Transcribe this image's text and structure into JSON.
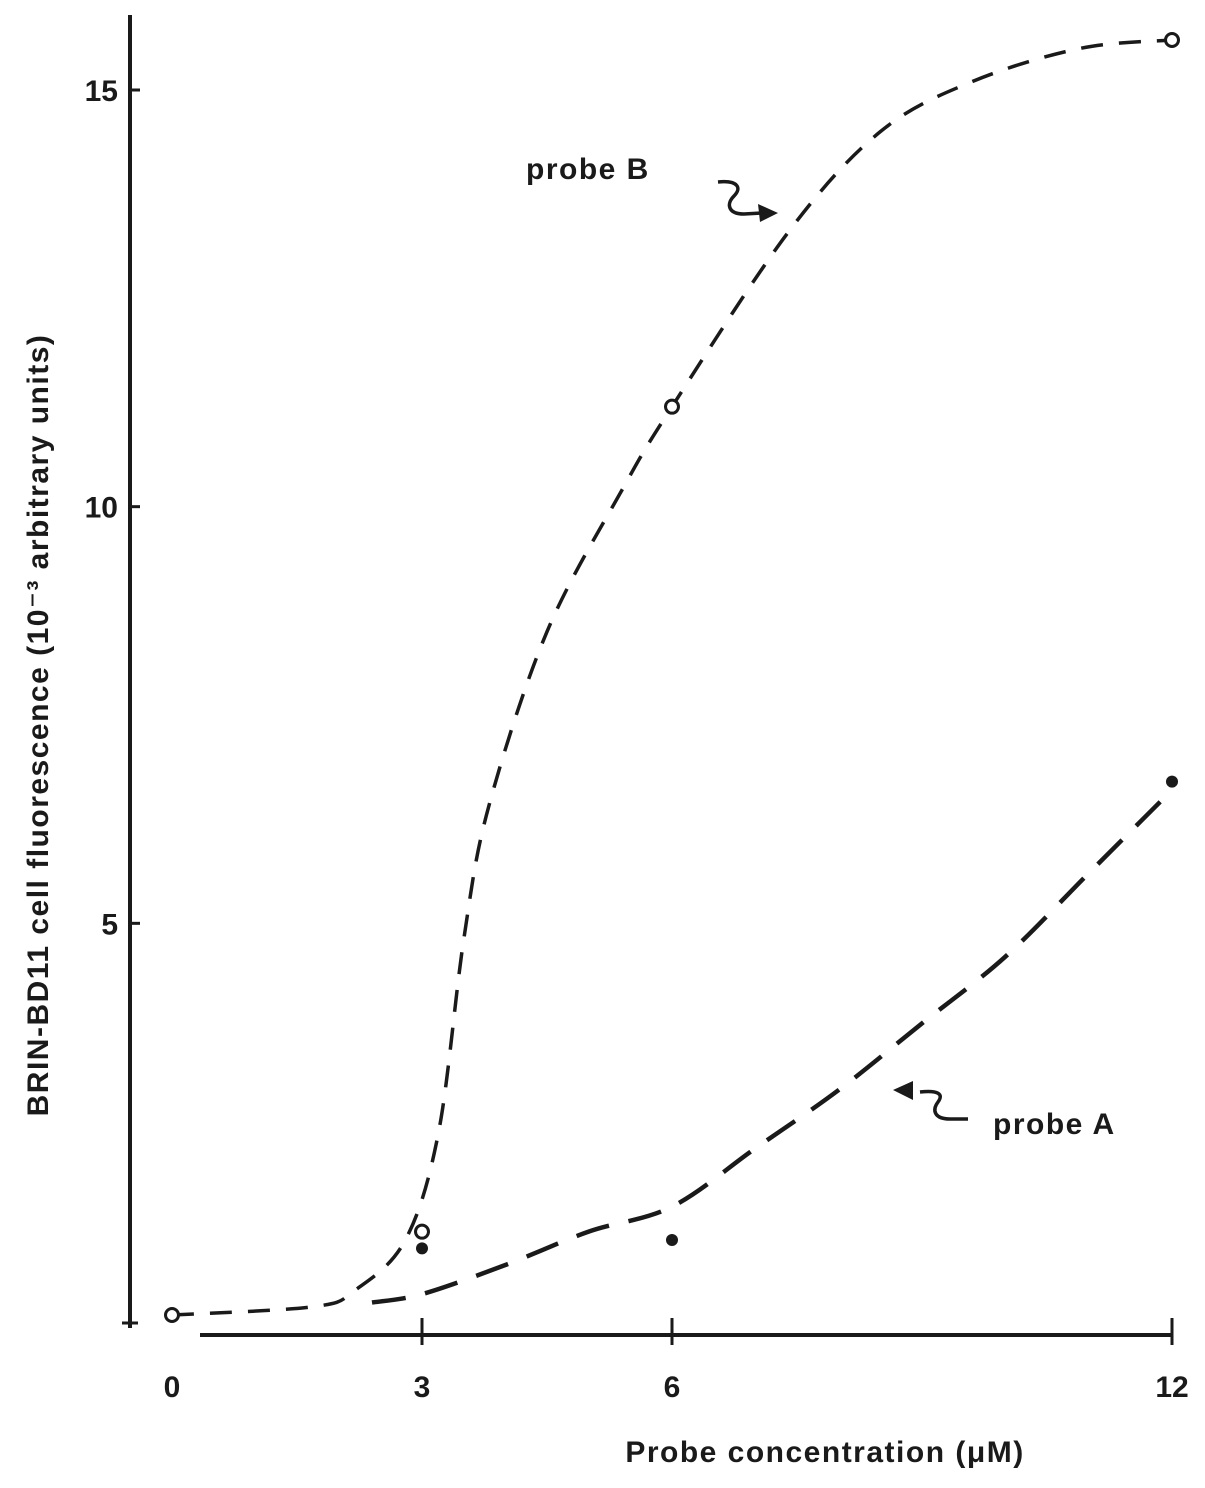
{
  "chart_data": {
    "type": "line",
    "title": "",
    "xlabel": "Probe concentration (μM)",
    "ylabel": "BRIN-BD11 cell fluorescence (10⁻³ arbitrary units)",
    "xlim": [
      0,
      12
    ],
    "ylim": [
      0,
      16
    ],
    "x_ticks": [
      0,
      3,
      6,
      12
    ],
    "x_tick_labels": [
      "0",
      "3",
      "6",
      "12"
    ],
    "y_ticks": [
      5,
      10,
      15
    ],
    "y_tick_labels": [
      "5",
      "10",
      "15"
    ],
    "grid": false,
    "series": [
      {
        "name": "probe B",
        "marker": "open-circle",
        "color": "#1a1a1a",
        "points": [
          {
            "x": 0,
            "y": 0.3
          },
          {
            "x": 3,
            "y": 1.3
          },
          {
            "x": 6,
            "y": 11.2
          },
          {
            "x": 12,
            "y": 15.6
          }
        ],
        "curve": [
          {
            "x": 0,
            "y": 0.3
          },
          {
            "x": 1.7,
            "y": 0.4
          },
          {
            "x": 2.2,
            "y": 0.6
          },
          {
            "x": 2.8,
            "y": 1.2
          },
          {
            "x": 3.2,
            "y": 2.5
          },
          {
            "x": 3.5,
            "y": 4.8
          },
          {
            "x": 3.8,
            "y": 6.4
          },
          {
            "x": 4.5,
            "y": 8.5
          },
          {
            "x": 5.4,
            "y": 10.2
          },
          {
            "x": 6.0,
            "y": 11.2
          },
          {
            "x": 7.4,
            "y": 13.3
          },
          {
            "x": 8.5,
            "y": 14.5
          },
          {
            "x": 9.6,
            "y": 15.1
          },
          {
            "x": 10.9,
            "y": 15.5
          },
          {
            "x": 12,
            "y": 15.6
          }
        ]
      },
      {
        "name": "probe A",
        "marker": "filled-circle",
        "color": "#1a1a1a",
        "points": [
          {
            "x": 3,
            "y": 1.1
          },
          {
            "x": 6,
            "y": 1.2
          },
          {
            "x": 12,
            "y": 6.7
          }
        ],
        "curve": [
          {
            "x": 2.4,
            "y": 0.45
          },
          {
            "x": 3.0,
            "y": 0.55
          },
          {
            "x": 4.0,
            "y": 0.9
          },
          {
            "x": 5.0,
            "y": 1.3
          },
          {
            "x": 6.0,
            "y": 1.6
          },
          {
            "x": 7.0,
            "y": 2.3
          },
          {
            "x": 8.0,
            "y": 3.0
          },
          {
            "x": 9.0,
            "y": 3.8
          },
          {
            "x": 10.0,
            "y": 4.6
          },
          {
            "x": 11.0,
            "y": 5.6
          },
          {
            "x": 12,
            "y": 6.6
          }
        ]
      }
    ]
  }
}
